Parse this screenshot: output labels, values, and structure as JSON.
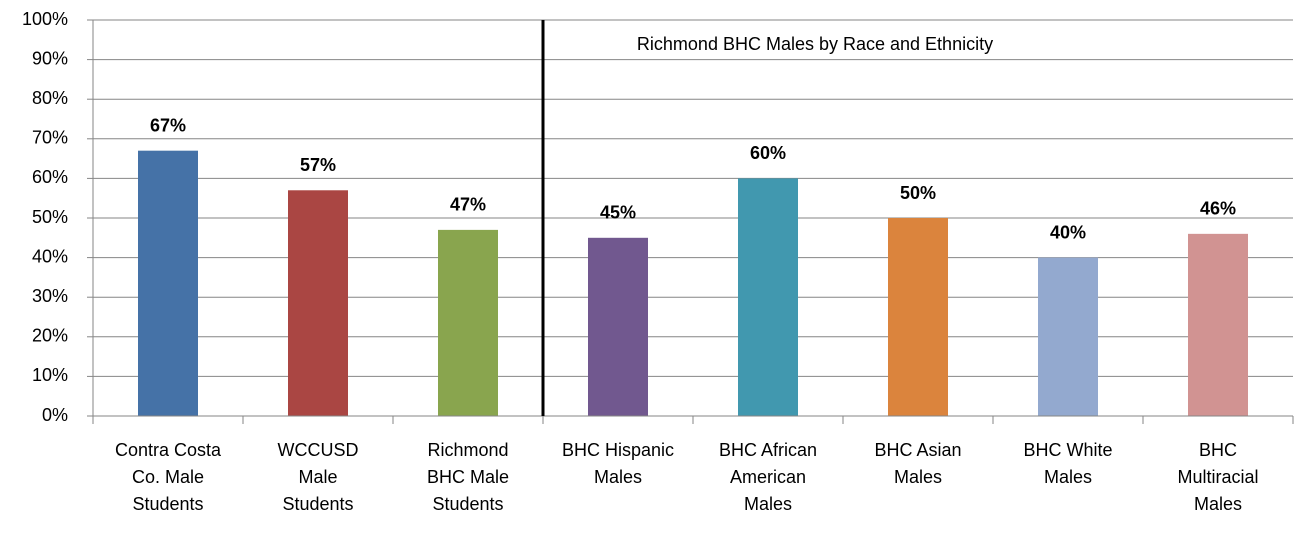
{
  "chart_data": {
    "type": "bar",
    "annotation": "Richmond BHC Males by Race and Ethnicity",
    "categories": [
      [
        "Contra Costa",
        "Co. Male",
        "Students"
      ],
      [
        "WCCUSD",
        "Male",
        "Students"
      ],
      [
        "Richmond",
        "BHC Male",
        "Students"
      ],
      [
        "BHC Hispanic",
        "Males"
      ],
      [
        "BHC African",
        "American",
        "Males"
      ],
      [
        "BHC Asian",
        "Males"
      ],
      [
        "BHC White",
        "Males"
      ],
      [
        "BHC",
        "Multiracial",
        "Males"
      ]
    ],
    "values": [
      67,
      57,
      47,
      45,
      60,
      50,
      40,
      46
    ],
    "value_labels": [
      "67%",
      "57%",
      "47%",
      "45%",
      "60%",
      "50%",
      "40%",
      "46%"
    ],
    "colors": [
      "#4572a7",
      "#aa4643",
      "#89a54e",
      "#71588f",
      "#4198af",
      "#db843d",
      "#93a9cf",
      "#d19392"
    ],
    "ylim": [
      0,
      100
    ],
    "yticks": [
      {
        "value": 0,
        "label": "0%"
      },
      {
        "value": 10,
        "label": "10%"
      },
      {
        "value": 20,
        "label": "20%"
      },
      {
        "value": 30,
        "label": "30%"
      },
      {
        "value": 40,
        "label": "40%"
      },
      {
        "value": 50,
        "label": "50%"
      },
      {
        "value": 60,
        "label": "60%"
      },
      {
        "value": 70,
        "label": "70%"
      },
      {
        "value": 80,
        "label": "80%"
      },
      {
        "value": 90,
        "label": "90%"
      },
      {
        "value": 100,
        "label": "100%"
      }
    ],
    "grid": true
  }
}
